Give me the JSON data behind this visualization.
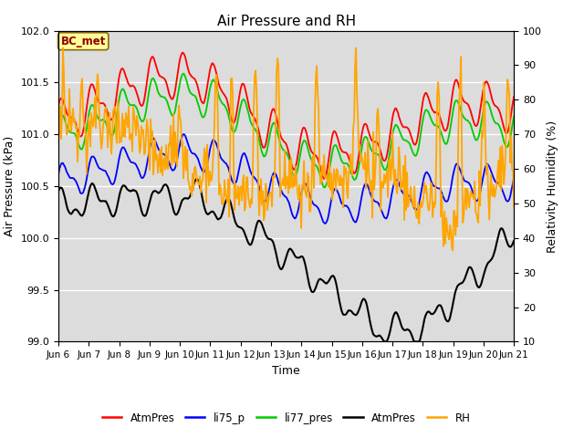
{
  "title": "Air Pressure and RH",
  "xlabel": "Time",
  "ylabel_left": "Air Pressure (kPa)",
  "ylabel_right": "Relativity Humidity (%)",
  "ylim_left": [
    99.0,
    102.0
  ],
  "ylim_right": [
    10,
    100
  ],
  "yticks_left": [
    99.0,
    99.5,
    100.0,
    100.5,
    101.0,
    101.5,
    102.0
  ],
  "yticks_right": [
    10,
    20,
    30,
    40,
    50,
    60,
    70,
    80,
    90,
    100
  ],
  "xtick_labels": [
    "Jun 6",
    "Jun 7",
    "Jun 8",
    "Jun 9",
    "Jun 10",
    "Jun 11",
    "Jun 12",
    "Jun 13",
    "Jun 14",
    "Jun 15",
    "Jun 16",
    "Jun 17",
    "Jun 18",
    "Jun 19",
    "Jun 20",
    "Jun 21"
  ],
  "bg_color": "#dcdcdc",
  "annotation_text": "BC_met",
  "annotation_color": "#8B0000",
  "annotation_bg": "#FFFF99",
  "legend_entries": [
    "AtmPres",
    "li75_p",
    "li77_pres",
    "AtmPres",
    "RH"
  ],
  "legend_colors": [
    "#ff0000",
    "#0000ff",
    "#00cc00",
    "#000000",
    "#ffa500"
  ],
  "n_points": 500
}
